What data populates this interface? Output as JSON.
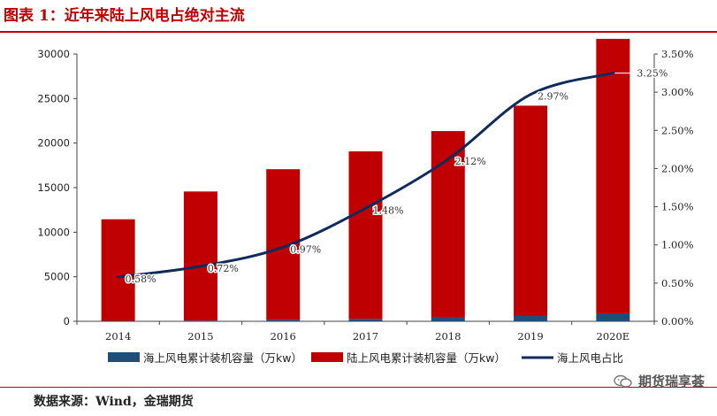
{
  "figure": {
    "title": "图表 1：近年来陆上风电占绝对主流",
    "source": "数据来源：Wind，金瑞期货",
    "watermark": "期货瑞享荟"
  },
  "chart_data": {
    "type": "bar",
    "categories": [
      "2014",
      "2015",
      "2016",
      "2017",
      "2018",
      "2019",
      "2020E"
    ],
    "series": [
      {
        "name": "海上风电累计装机容量（万kw）",
        "kind": "bar",
        "axis": "left",
        "color": "#1f4e79",
        "values": [
          50,
          70,
          170,
          270,
          450,
          600,
          900
        ]
      },
      {
        "name": "陆上风电累计装机容量（万kw）",
        "kind": "bar",
        "axis": "left",
        "color": "#c00000",
        "values": [
          11400,
          14500,
          16900,
          18800,
          20900,
          23600,
          30800
        ]
      },
      {
        "name": "海上风电占比",
        "kind": "line",
        "axis": "right",
        "color": "#0f2a5c",
        "values": [
          0.58,
          0.72,
          0.97,
          1.48,
          2.12,
          2.97,
          3.25
        ]
      }
    ],
    "point_labels": [
      "0.58%",
      "0.72%",
      "0.97%",
      "1.48%",
      "2.12%",
      "2.97%",
      "3.25%"
    ],
    "ylim": [
      0,
      30000
    ],
    "y_ticks": [
      "0",
      "5000",
      "10000",
      "15000",
      "20000",
      "25000",
      "30000"
    ],
    "y2lim": [
      0,
      3.5
    ],
    "y2_ticks": [
      "0.00%",
      "0.50%",
      "1.00%",
      "1.50%",
      "2.00%",
      "2.50%",
      "3.00%",
      "3.50%"
    ],
    "legend_position": "bottom",
    "grid": false
  }
}
